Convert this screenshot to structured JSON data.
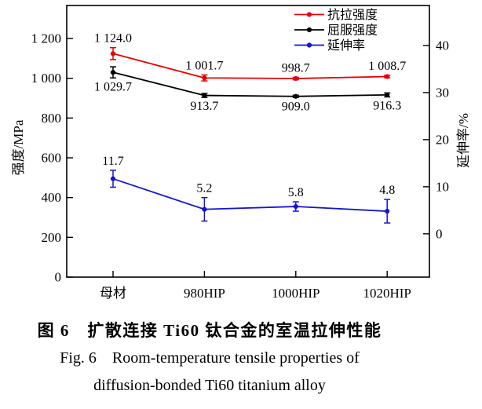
{
  "figure": {
    "caption": {
      "zh": "图 6　扩散连接 Ti60 钛合金的室温拉伸性能",
      "en_line1": "Fig. 6　Room-temperature tensile properties of",
      "en_line2": "diffusion-bonded Ti60 titanium alloy"
    }
  },
  "chart_data": {
    "type": "line",
    "title": "",
    "categories": [
      "母材",
      "980HIP",
      "1000HIP",
      "1020HIP"
    ],
    "left_axis": {
      "label": "强度/MPa",
      "range": [
        0,
        1366
      ],
      "ticks": [
        0,
        200,
        400,
        600,
        800,
        1000,
        1200
      ],
      "tick_labels": [
        "0",
        "200",
        "400",
        "600",
        "800",
        "1 000",
        "1 200"
      ]
    },
    "right_axis": {
      "label": "延伸率/%",
      "range": [
        -9.2,
        48.5
      ],
      "ticks": [
        0,
        10,
        20,
        30,
        40
      ],
      "tick_labels": [
        "0",
        "10",
        "20",
        "30",
        "40"
      ]
    },
    "series": [
      {
        "name": "抗拉强度",
        "color": "#e60000",
        "axis": "left",
        "values": [
          1124.0,
          1001.7,
          998.7,
          1008.7
        ],
        "errors": [
          30,
          15,
          6,
          6
        ],
        "point_labels": [
          "1 124.0",
          "1 001.7",
          "998.7",
          "1 008.7"
        ],
        "label_position": "above"
      },
      {
        "name": "屈服强度",
        "color": "#000000",
        "axis": "left",
        "values": [
          1029.7,
          913.7,
          909.0,
          916.3
        ],
        "errors": [
          28,
          10,
          6,
          10
        ],
        "point_labels": [
          "1 029.7",
          "913.7",
          "909.0",
          "916.3"
        ],
        "label_position": "below"
      },
      {
        "name": "延伸率",
        "color": "#1515cc",
        "axis": "right",
        "values": [
          11.7,
          5.2,
          5.8,
          4.8
        ],
        "errors": [
          1.8,
          2.5,
          1.0,
          2.5
        ],
        "point_labels": [
          "11.7",
          "5.2",
          "5.8",
          "4.8"
        ],
        "label_position": "above"
      }
    ],
    "legend": {
      "position": "top-right"
    },
    "grid": false
  }
}
